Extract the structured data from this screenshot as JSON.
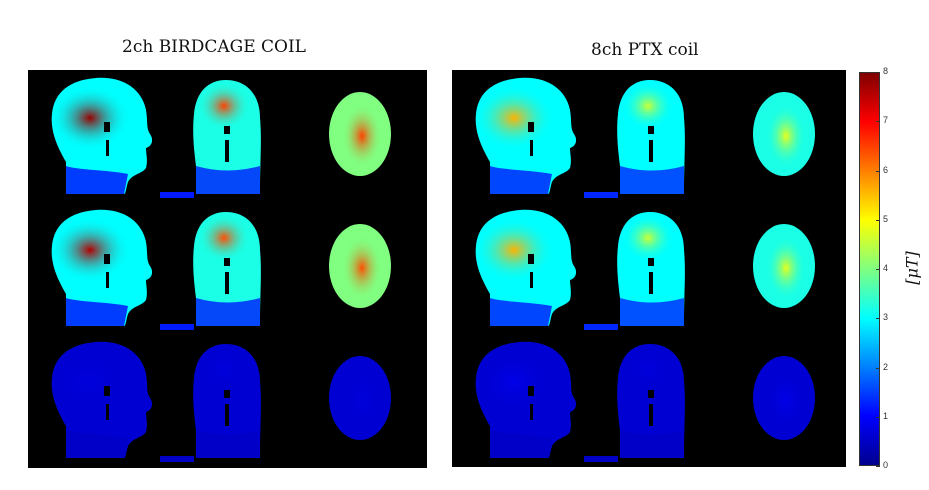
{
  "titles": {
    "left": "2ch BIRDCAGE COIL",
    "right": "8ch PTX coil"
  },
  "colorbar": {
    "label": "[μT]",
    "min": 0,
    "max": 8,
    "ticks": [
      "0",
      "1",
      "2",
      "3",
      "4",
      "5",
      "6",
      "7",
      "8"
    ],
    "colormap": [
      "#00008f",
      "#0000ff",
      "#0080ff",
      "#00ffff",
      "#80ff80",
      "#ffff00",
      "#ff8000",
      "#ff0000",
      "#800000"
    ]
  },
  "colors": {
    "background": "#000000",
    "holes": "#000000"
  },
  "panels": [
    {
      "name": "birdcage",
      "rows": [
        {
          "sag_hot": 7.8,
          "sag_body": 3.0,
          "sag_neck": 1.2,
          "cor_hot": 6.5,
          "cor_body": 3.2,
          "ax_hot": 6.5,
          "ax_body": 4.0
        },
        {
          "sag_hot": 7.6,
          "sag_body": 3.0,
          "sag_neck": 1.2,
          "cor_hot": 6.4,
          "cor_body": 3.2,
          "ax_hot": 6.4,
          "ax_body": 4.0
        },
        {
          "sag_hot": 0.7,
          "sag_body": 0.6,
          "sag_neck": 0.5,
          "cor_hot": 0.7,
          "cor_body": 0.6,
          "ax_hot": 0.7,
          "ax_body": 0.6
        }
      ]
    },
    {
      "name": "ptx",
      "rows": [
        {
          "sag_hot": 5.6,
          "sag_body": 3.0,
          "sag_neck": 1.3,
          "cor_hot": 4.6,
          "cor_body": 3.0,
          "ax_hot": 4.8,
          "ax_body": 3.2
        },
        {
          "sag_hot": 5.6,
          "sag_body": 3.0,
          "sag_neck": 1.3,
          "cor_hot": 4.6,
          "cor_body": 3.0,
          "ax_hot": 4.8,
          "ax_body": 3.2
        },
        {
          "sag_hot": 0.8,
          "sag_body": 0.6,
          "sag_neck": 0.5,
          "cor_hot": 0.7,
          "cor_body": 0.6,
          "ax_hot": 0.8,
          "ax_body": 0.6
        }
      ]
    }
  ]
}
